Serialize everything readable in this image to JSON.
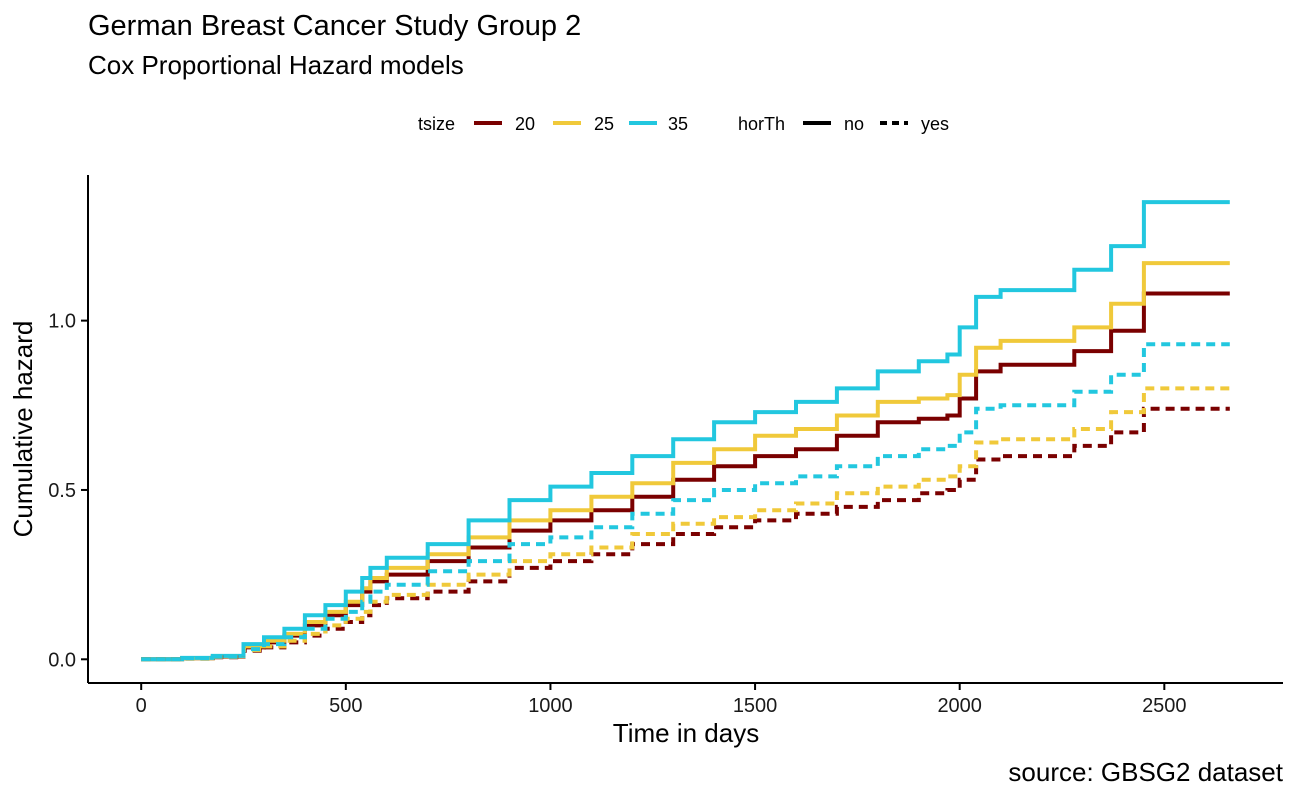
{
  "chart_data": {
    "type": "line",
    "title": "German Breast Cancer Study Group 2",
    "subtitle": "Cox Proportional Hazard models",
    "xlabel": "Time in days",
    "ylabel": "Cumulative hazard",
    "caption": "source: GBSG2 dataset",
    "xlim": [
      -130,
      2790
    ],
    "ylim": [
      -0.07,
      1.43
    ],
    "x_ticks": [
      0,
      500,
      1000,
      1500,
      2000,
      2500
    ],
    "x_tick_labels": [
      "0",
      "500",
      "1000",
      "1500",
      "2000",
      "2500"
    ],
    "y_ticks": [
      0.0,
      0.5,
      1.0
    ],
    "y_tick_labels": [
      "0.0",
      "0.5",
      "1.0"
    ],
    "grid": false,
    "legend": {
      "position": "top",
      "color_title": "tsize",
      "color_items": [
        {
          "label": "20",
          "color": "#7a0000"
        },
        {
          "label": "25",
          "color": "#f0c93a"
        },
        {
          "label": "35",
          "color": "#22c7df"
        }
      ],
      "linetype_title": "horTh",
      "linetype_items": [
        {
          "label": "no",
          "linetype": "solid"
        },
        {
          "label": "yes",
          "linetype": "dashed"
        }
      ]
    },
    "x": [
      0,
      100,
      175,
      250,
      300,
      350,
      400,
      450,
      500,
      540,
      560,
      600,
      700,
      800,
      900,
      1000,
      1100,
      1200,
      1300,
      1400,
      1500,
      1600,
      1700,
      1800,
      1900,
      1970,
      2000,
      2040,
      2100,
      2280,
      2370,
      2450,
      2660
    ],
    "series": [
      {
        "tsize": "20",
        "horTh": "no",
        "color": "#7a0000",
        "linetype": "solid",
        "values": [
          0,
          0.003,
          0.008,
          0.035,
          0.05,
          0.07,
          0.1,
          0.13,
          0.16,
          0.2,
          0.23,
          0.25,
          0.29,
          0.33,
          0.38,
          0.41,
          0.44,
          0.48,
          0.53,
          0.57,
          0.6,
          0.62,
          0.66,
          0.7,
          0.71,
          0.72,
          0.77,
          0.85,
          0.87,
          0.91,
          0.97,
          1.08,
          1.08
        ]
      },
      {
        "tsize": "25",
        "horTh": "no",
        "color": "#f0c93a",
        "linetype": "solid",
        "values": [
          0,
          0.003,
          0.009,
          0.038,
          0.055,
          0.075,
          0.11,
          0.14,
          0.17,
          0.21,
          0.24,
          0.27,
          0.31,
          0.36,
          0.41,
          0.44,
          0.48,
          0.52,
          0.58,
          0.62,
          0.66,
          0.68,
          0.72,
          0.76,
          0.77,
          0.78,
          0.84,
          0.92,
          0.94,
          0.98,
          1.05,
          1.17,
          1.17
        ]
      },
      {
        "tsize": "35",
        "horTh": "no",
        "color": "#22c7df",
        "linetype": "solid",
        "values": [
          0,
          0.004,
          0.01,
          0.045,
          0.065,
          0.09,
          0.13,
          0.16,
          0.2,
          0.24,
          0.27,
          0.3,
          0.34,
          0.41,
          0.47,
          0.51,
          0.55,
          0.6,
          0.65,
          0.7,
          0.73,
          0.76,
          0.8,
          0.85,
          0.88,
          0.9,
          0.98,
          1.07,
          1.09,
          1.15,
          1.22,
          1.35,
          1.35
        ]
      },
      {
        "tsize": "20",
        "horTh": "yes",
        "color": "#7a0000",
        "linetype": "dashed",
        "values": [
          0,
          0.002,
          0.006,
          0.025,
          0.035,
          0.05,
          0.07,
          0.09,
          0.11,
          0.13,
          0.16,
          0.18,
          0.2,
          0.23,
          0.27,
          0.29,
          0.31,
          0.34,
          0.37,
          0.39,
          0.41,
          0.43,
          0.45,
          0.47,
          0.49,
          0.5,
          0.53,
          0.59,
          0.6,
          0.63,
          0.67,
          0.74,
          0.74
        ]
      },
      {
        "tsize": "25",
        "horTh": "yes",
        "color": "#f0c93a",
        "linetype": "dashed",
        "values": [
          0,
          0.002,
          0.007,
          0.027,
          0.038,
          0.055,
          0.075,
          0.1,
          0.12,
          0.14,
          0.17,
          0.19,
          0.22,
          0.25,
          0.29,
          0.31,
          0.33,
          0.37,
          0.4,
          0.42,
          0.44,
          0.46,
          0.49,
          0.51,
          0.53,
          0.54,
          0.57,
          0.64,
          0.65,
          0.68,
          0.73,
          0.8,
          0.8
        ]
      },
      {
        "tsize": "35",
        "horTh": "yes",
        "color": "#22c7df",
        "linetype": "dashed",
        "values": [
          0,
          0.003,
          0.008,
          0.03,
          0.045,
          0.065,
          0.09,
          0.12,
          0.14,
          0.17,
          0.2,
          0.22,
          0.26,
          0.29,
          0.34,
          0.36,
          0.39,
          0.43,
          0.47,
          0.5,
          0.52,
          0.54,
          0.57,
          0.6,
          0.62,
          0.63,
          0.67,
          0.74,
          0.75,
          0.79,
          0.84,
          0.93,
          0.93
        ]
      }
    ]
  }
}
